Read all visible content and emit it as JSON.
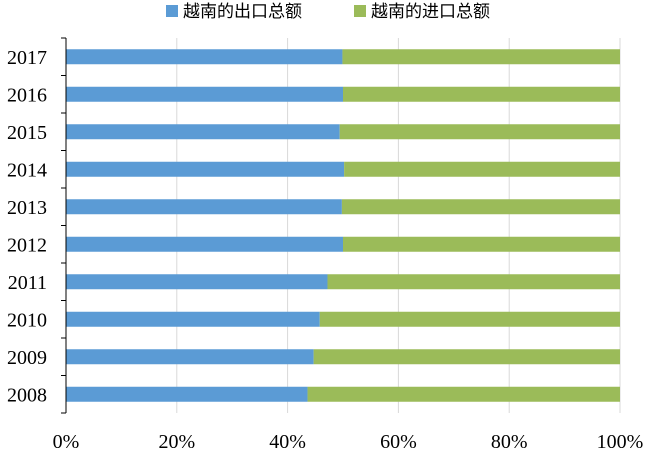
{
  "chart_data": {
    "type": "bar",
    "orientation": "horizontal",
    "stacked": "percent",
    "categories": [
      "2017",
      "2016",
      "2015",
      "2014",
      "2013",
      "2012",
      "2011",
      "2010",
      "2009",
      "2008"
    ],
    "series": [
      {
        "name": "越南的出口总额",
        "color": "#5b9bd5",
        "values": [
          49.9,
          50.0,
          49.4,
          50.2,
          49.8,
          50.0,
          47.2,
          45.8,
          44.7,
          43.6
        ]
      },
      {
        "name": "越南的进口总额",
        "color": "#9bbb59",
        "values": [
          50.1,
          50.0,
          50.6,
          49.8,
          50.2,
          50.0,
          52.8,
          54.2,
          55.3,
          56.4
        ]
      }
    ],
    "xlim": [
      0,
      100
    ],
    "xticks": [
      "0%",
      "20%",
      "40%",
      "60%",
      "80%",
      "100%"
    ],
    "grid": true,
    "legend_position": "top"
  }
}
